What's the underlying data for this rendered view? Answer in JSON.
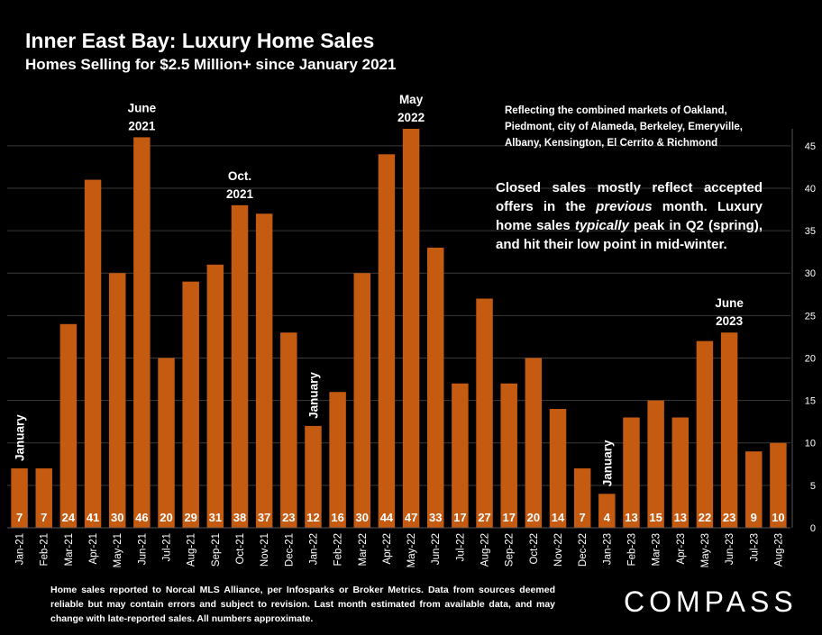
{
  "header": {
    "title": "Inner East Bay: Luxury Home Sales",
    "subtitle": "Homes Selling for $2.5 Million+ since January 2021"
  },
  "notes": {
    "markets": "Reflecting the combined markets of Oakland, Piedmont, city of Alameda, Berkeley, Emeryville, Albany, Kensington, El Cerrito & Richmond",
    "seasonality": "Closed sales mostly reflect accepted offers in the previous month. Luxury home sales typically peak in Q2 (spring), and hit their low point in mid-winter.",
    "footnote": "Home sales reported to Norcal MLS Alliance, per Infosparks or Broker Metrics. Data from sources deemed reliable but may contain errors and subject to revision.  Last month estimated from available data, and may change with late-reported sales. All numbers approximate."
  },
  "brand": {
    "logo": "COMPASS"
  },
  "colors": {
    "bar": "#C55A11",
    "background": "#000000",
    "grid": "#3a3a3a",
    "text": "#ffffff"
  },
  "chart_data": {
    "type": "bar",
    "categories": [
      "Jan-21",
      "Feb-21",
      "Mar-21",
      "Apr-21",
      "May-21",
      "Jun-21",
      "Jul-21",
      "Aug-21",
      "Sep-21",
      "Oct-21",
      "Nov-21",
      "Dec-21",
      "Jan-22",
      "Feb-22",
      "Mar-22",
      "Apr-22",
      "May-22",
      "Jun-22",
      "Jul-22",
      "Aug-22",
      "Sep-22",
      "Oct-22",
      "Nov-22",
      "Dec-22",
      "Jan-23",
      "Feb-23",
      "Mar-23",
      "Apr-23",
      "May-23",
      "Jun-23",
      "Jul-23",
      "Aug-23"
    ],
    "values": [
      7,
      7,
      24,
      41,
      30,
      46,
      20,
      29,
      31,
      38,
      37,
      23,
      12,
      16,
      30,
      44,
      47,
      33,
      17,
      27,
      17,
      20,
      14,
      7,
      4,
      13,
      15,
      13,
      22,
      23,
      9,
      10
    ],
    "ylim": [
      0,
      47
    ],
    "yticks": [
      0,
      5,
      10,
      15,
      20,
      25,
      30,
      35,
      40,
      45
    ],
    "y_axis_side": "right",
    "grid": true,
    "data_labels": true,
    "annotations": [
      {
        "category": "Jun-21",
        "text": [
          "June",
          "2021"
        ],
        "orientation": "horizontal"
      },
      {
        "category": "Oct-21",
        "text": [
          "Oct.",
          "2021"
        ],
        "orientation": "horizontal"
      },
      {
        "category": "May-22",
        "text": [
          "May",
          "2022"
        ],
        "orientation": "horizontal"
      },
      {
        "category": "Jun-23",
        "text": [
          "June",
          "2023"
        ],
        "orientation": "horizontal"
      },
      {
        "category": "Jan-21",
        "text": [
          "January"
        ],
        "orientation": "vertical"
      },
      {
        "category": "Jan-22",
        "text": [
          "January"
        ],
        "orientation": "vertical"
      },
      {
        "category": "Jan-23",
        "text": [
          "January"
        ],
        "orientation": "vertical"
      }
    ]
  }
}
